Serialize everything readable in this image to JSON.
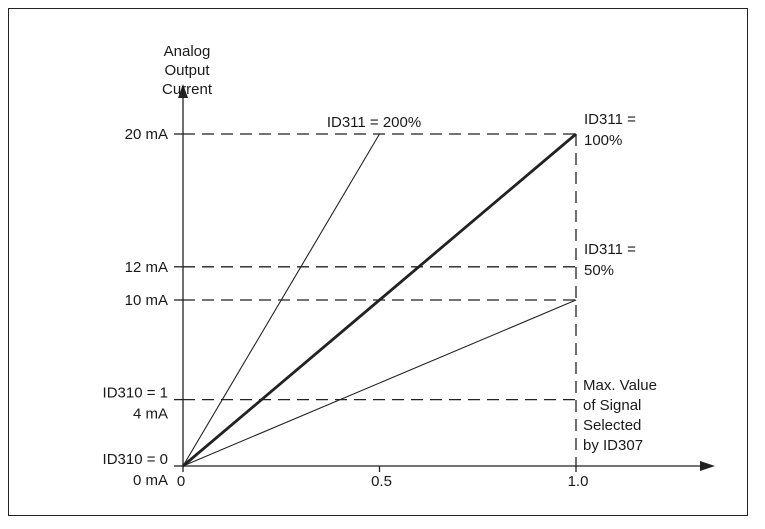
{
  "chart_data": {
    "type": "line",
    "title": "",
    "ylabel_lines": [
      "Analog",
      "Output",
      "Current"
    ],
    "xlim": [
      0,
      1.0
    ],
    "ylim": [
      0,
      20
    ],
    "x_ticks": [
      {
        "value": 0,
        "label": "0"
      },
      {
        "value": 0.5,
        "label": "0.5"
      },
      {
        "value": 1.0,
        "label": "1.0"
      }
    ],
    "y_ticks": [
      {
        "value": 20,
        "lines": [
          "20 mA"
        ]
      },
      {
        "value": 12,
        "lines": [
          "12 mA"
        ]
      },
      {
        "value": 10,
        "lines": [
          "10 mA"
        ]
      },
      {
        "value": 4,
        "lines": [
          "ID310 = 1",
          "4 mA"
        ]
      },
      {
        "value": 0,
        "lines": [
          "ID310 = 0",
          "0 mA"
        ]
      }
    ],
    "series": [
      {
        "style": "dashed",
        "x": [
          0,
          0.5
        ],
        "y": [
          4,
          20
        ]
      },
      {
        "style": "dashed",
        "x": [
          0,
          1.0
        ],
        "y": [
          4,
          20
        ]
      },
      {
        "style": "dashed",
        "x": [
          0,
          1.0
        ],
        "y": [
          4,
          12
        ]
      },
      {
        "style": "thin",
        "x": [
          0,
          0.5
        ],
        "y": [
          0,
          20
        ]
      },
      {
        "style": "thick",
        "x": [
          0,
          1.0
        ],
        "y": [
          0,
          20
        ]
      },
      {
        "style": "thin",
        "x": [
          0,
          1.0
        ],
        "y": [
          0,
          10
        ]
      }
    ],
    "annotations": [
      {
        "text_lines": [
          "ID311 = 200%"
        ],
        "anchor": "above line end at (0.5, 20)"
      },
      {
        "text_lines": [
          "ID311 =",
          "100%"
        ],
        "anchor": "right of (1.0, 20)"
      },
      {
        "text_lines": [
          "ID311 =",
          "50%"
        ],
        "anchor": "right of (1.0, 12)"
      },
      {
        "text_lines": [
          "Max. Value",
          "of Signal",
          "Selected",
          "by ID307"
        ],
        "anchor": "right of x = 1.0, lower area"
      }
    ],
    "grid": false,
    "reference_lines": "dashed guides at y = 20, 12, 10, 4 and x = 1.0"
  }
}
